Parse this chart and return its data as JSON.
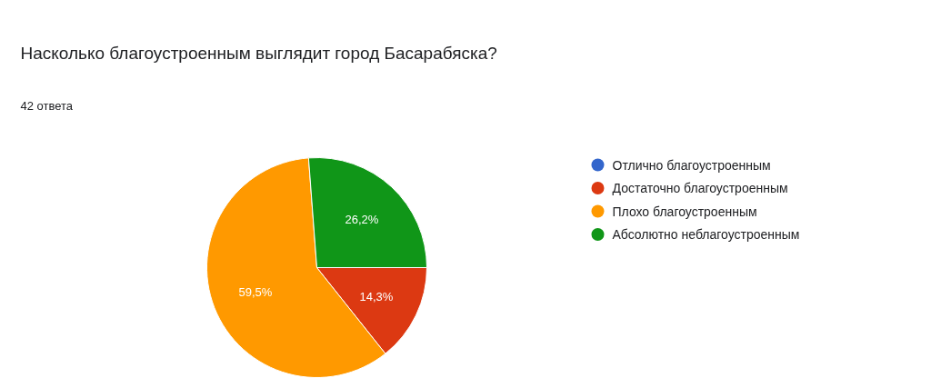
{
  "chart_data": {
    "type": "pie",
    "title": "Насколько благоустроенным выглядит город Басарабяска?",
    "subtitle": "42 ответа",
    "categories": [
      "Отлично благоустроенным",
      "Достаточно благоустроенным",
      "Плохо благоустроенным",
      "Абсолютно неблагоустроенным"
    ],
    "values": [
      0,
      14.3,
      59.5,
      26.2
    ],
    "colors": [
      "#3366cc",
      "#dc3912",
      "#ff9900",
      "#109618"
    ],
    "value_labels": [
      null,
      "14,3%",
      "59,5%",
      "26,2%"
    ],
    "legend": "right"
  }
}
